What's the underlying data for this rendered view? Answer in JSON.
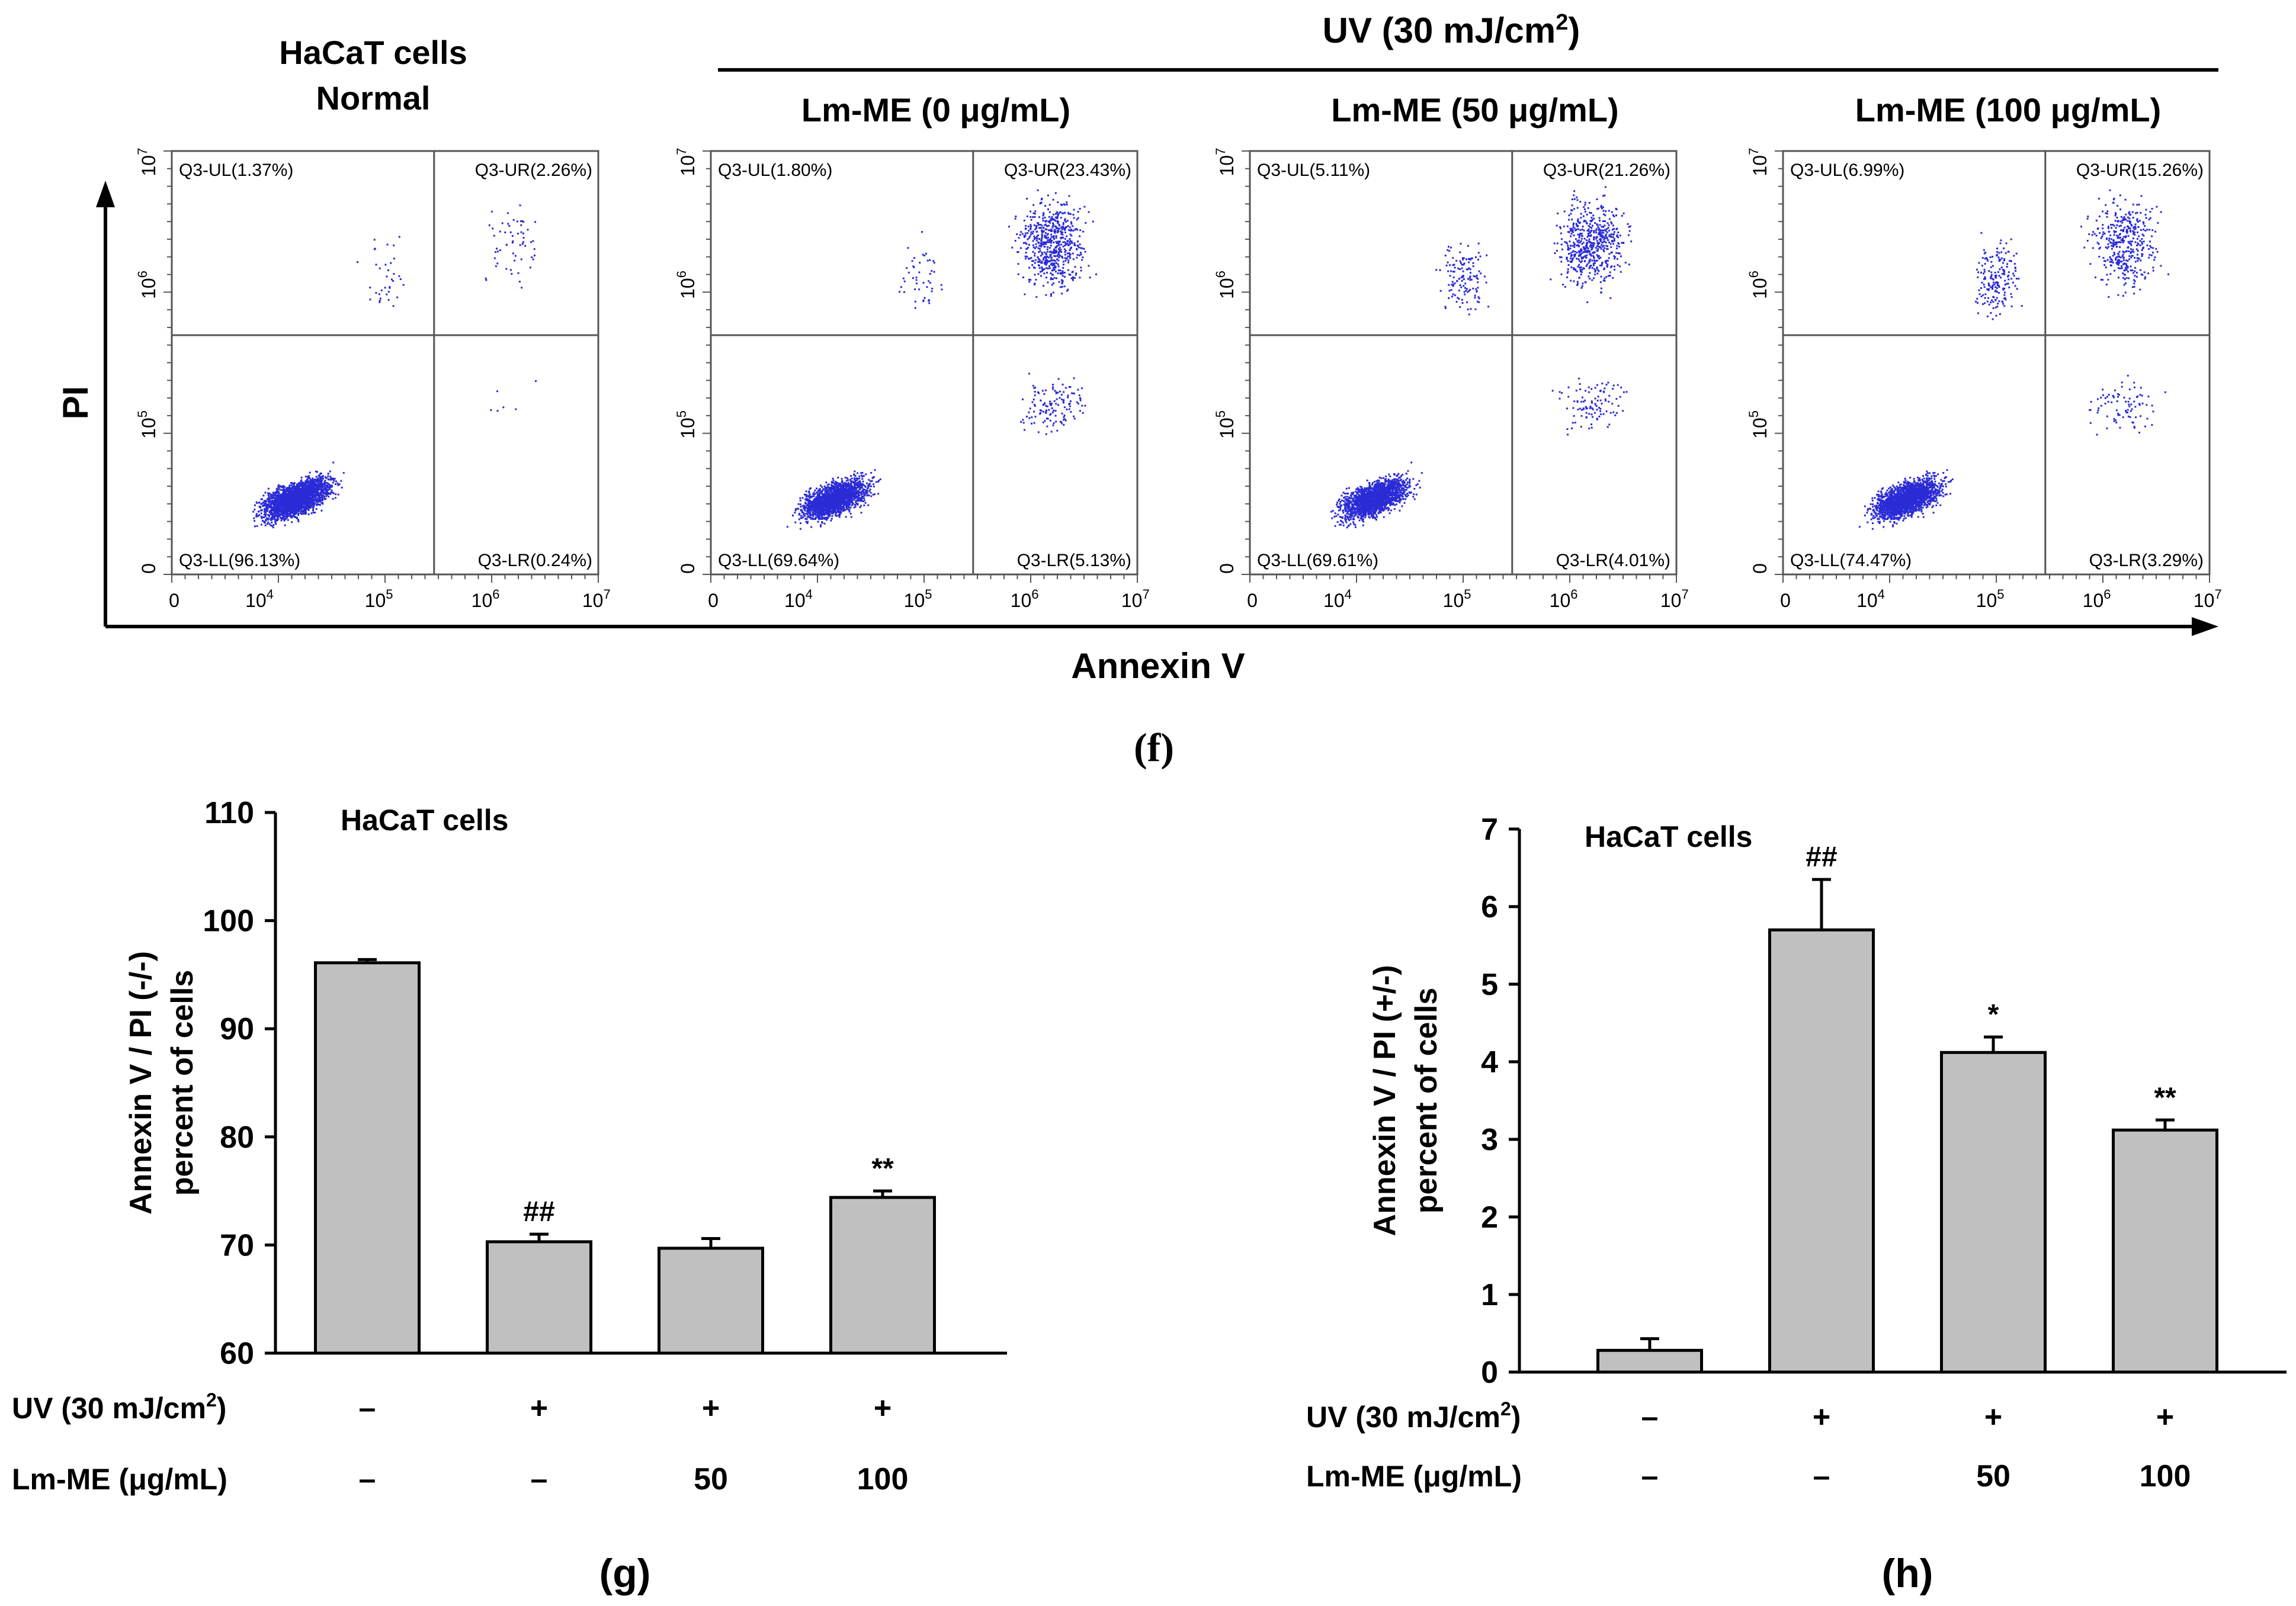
{
  "figure_f": {
    "panel_label": "(f)",
    "group_header": {
      "pre": "UV (30 mJ/cm",
      "sup": "2",
      "post": ")"
    },
    "y_axis_label": "PI",
    "x_axis_label": "Annexin V",
    "tick_labels": [
      "0",
      "10",
      "10",
      "10",
      "10"
    ],
    "tick_exponents": [
      "",
      "4",
      "5",
      "6",
      "7"
    ],
    "colors": {
      "dots": "#2b2bd6",
      "axes": "#000000",
      "grid": "#555555"
    }
  },
  "chart_data": [
    {
      "type": "scatter",
      "panel": "f",
      "axis_scale": "log (flow cytometry)",
      "x_ticks": [
        "0",
        "10^4",
        "10^5",
        "10^6",
        "10^7"
      ],
      "y_ticks": [
        "0",
        "10^5",
        "10^6",
        "10^7"
      ],
      "xlim": [
        0,
        10000000
      ],
      "ylim": [
        0,
        10000000
      ],
      "plots": [
        {
          "title_lines": [
            "HaCaT cells",
            "Normal"
          ],
          "quadrants": {
            "UL": "Q3-UL(1.37%)",
            "UR": "Q3-UR(2.26%)",
            "LL": "Q3-LL(96.13%)",
            "LR": "Q3-LR(0.24%)"
          },
          "percent": {
            "UL": 1.37,
            "UR": 2.26,
            "LL": 96.13,
            "LR": 0.24
          }
        },
        {
          "title_lines": [
            "Lm-ME (0 μg/mL)"
          ],
          "quadrants": {
            "UL": "Q3-UL(1.80%)",
            "UR": "Q3-UR(23.43%)",
            "LL": "Q3-LL(69.64%)",
            "LR": "Q3-LR(5.13%)"
          },
          "percent": {
            "UL": 1.8,
            "UR": 23.43,
            "LL": 69.64,
            "LR": 5.13
          }
        },
        {
          "title_lines": [
            "Lm-ME (50 μg/mL)"
          ],
          "quadrants": {
            "UL": "Q3-UL(5.11%)",
            "UR": "Q3-UR(21.26%)",
            "LL": "Q3-LL(69.61%)",
            "LR": "Q3-LR(4.01%)"
          },
          "percent": {
            "UL": 5.11,
            "UR": 21.26,
            "LL": 69.61,
            "LR": 4.01
          }
        },
        {
          "title_lines": [
            "Lm-ME (100 μg/mL)"
          ],
          "quadrants": {
            "UL": "Q3-UL(6.99%)",
            "UR": "Q3-UR(15.26%)",
            "LL": "Q3-LL(74.47%)",
            "LR": "Q3-LR(3.29%)"
          },
          "percent": {
            "UL": 6.99,
            "UR": 15.26,
            "LL": 74.47,
            "LR": 3.29
          }
        }
      ]
    },
    {
      "type": "bar",
      "panel": "g",
      "panel_label": "(g)",
      "inner_title": "HaCaT cells",
      "ylabel_lines": [
        "Annexin V / PI (-/-)",
        "percent of cells"
      ],
      "ylim": [
        60,
        110
      ],
      "yticks": [
        60,
        70,
        80,
        90,
        100,
        110
      ],
      "values": [
        96.1,
        70.3,
        69.7,
        74.4
      ],
      "errors": [
        0.3,
        0.7,
        0.9,
        0.6
      ],
      "annotations": [
        "",
        "##",
        "",
        "**"
      ],
      "treatment_rows": [
        {
          "label_pre": "UV (30 mJ/cm",
          "label_sup": "2",
          "label_post": ")",
          "cells": [
            "–",
            "+",
            "+",
            "+"
          ]
        },
        {
          "label_pre": "Lm-ME (μg/mL)",
          "label_sup": "",
          "label_post": "",
          "cells": [
            "–",
            "–",
            "50",
            "100"
          ]
        }
      ],
      "bar_color": "#c0c0c0"
    },
    {
      "type": "bar",
      "panel": "h",
      "panel_label": "(h)",
      "inner_title": "HaCaT cells",
      "ylabel_lines": [
        "Annexin V / PI (+/-)",
        "percent of cells"
      ],
      "ylim": [
        0,
        7
      ],
      "yticks": [
        0,
        1,
        2,
        3,
        4,
        5,
        6,
        7
      ],
      "values": [
        0.28,
        5.7,
        4.12,
        3.12
      ],
      "errors": [
        0.15,
        0.65,
        0.2,
        0.13
      ],
      "annotations": [
        "",
        "##",
        "*",
        "**"
      ],
      "treatment_rows": [
        {
          "label_pre": "UV (30 mJ/cm",
          "label_sup": "2",
          "label_post": ")",
          "cells": [
            "–",
            "+",
            "+",
            "+"
          ]
        },
        {
          "label_pre": "Lm-ME (μg/mL)",
          "label_sup": "",
          "label_post": "",
          "cells": [
            "–",
            "–",
            "50",
            "100"
          ]
        }
      ],
      "bar_color": "#c0c0c0"
    }
  ]
}
